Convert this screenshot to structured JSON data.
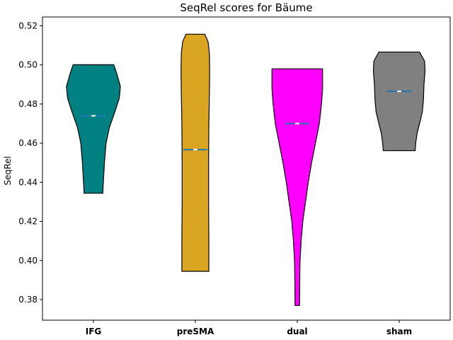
{
  "chart_data": {
    "type": "violin",
    "title": "SeqRel scores for Bäume",
    "xlabel": "",
    "ylabel": "SeqRel",
    "ylim": [
      0.3695,
      0.5245
    ],
    "yticks": [
      0.38,
      0.4,
      0.42,
      0.44,
      0.46,
      0.48,
      0.5,
      0.52
    ],
    "ytick_labels": [
      "0.38",
      "0.40",
      "0.42",
      "0.44",
      "0.46",
      "0.48",
      "0.50",
      "0.52"
    ],
    "grid": false,
    "categories": [
      "IFG",
      "preSMA",
      "dual",
      "sham"
    ],
    "series": [
      {
        "category": "IFG",
        "color": "#008080",
        "min": 0.4344,
        "max": 0.5001,
        "median": 0.474,
        "profile": [
          [
            0.4344,
            0.34
          ],
          [
            0.44,
            0.36
          ],
          [
            0.45,
            0.4
          ],
          [
            0.46,
            0.46
          ],
          [
            0.468,
            0.58
          ],
          [
            0.476,
            0.78
          ],
          [
            0.483,
            0.94
          ],
          [
            0.489,
            0.98
          ],
          [
            0.495,
            0.86
          ],
          [
            0.5001,
            0.74
          ]
        ]
      },
      {
        "category": "preSMA",
        "color": "#DAA520",
        "min": 0.3945,
        "max": 0.5157,
        "median": 0.4567,
        "profile": [
          [
            0.3945,
            0.49
          ],
          [
            0.41,
            0.49
          ],
          [
            0.43,
            0.48
          ],
          [
            0.45,
            0.48
          ],
          [
            0.47,
            0.49
          ],
          [
            0.485,
            0.51
          ],
          [
            0.497,
            0.52
          ],
          [
            0.506,
            0.51
          ],
          [
            0.512,
            0.46
          ],
          [
            0.5157,
            0.34
          ]
        ]
      },
      {
        "category": "dual",
        "color": "#FF00FF",
        "min": 0.377,
        "max": 0.498,
        "median": 0.47,
        "profile": [
          [
            0.377,
            0.08
          ],
          [
            0.39,
            0.09
          ],
          [
            0.4,
            0.1
          ],
          [
            0.41,
            0.14
          ],
          [
            0.42,
            0.2
          ],
          [
            0.43,
            0.3
          ],
          [
            0.44,
            0.4
          ],
          [
            0.45,
            0.52
          ],
          [
            0.46,
            0.66
          ],
          [
            0.47,
            0.8
          ],
          [
            0.48,
            0.88
          ],
          [
            0.488,
            0.92
          ],
          [
            0.498,
            0.92
          ]
        ]
      },
      {
        "category": "sham",
        "color": "#808080",
        "min": 0.4562,
        "max": 0.5066,
        "median": 0.4865,
        "profile": [
          [
            0.4562,
            0.58
          ],
          [
            0.46,
            0.6
          ],
          [
            0.465,
            0.65
          ],
          [
            0.47,
            0.74
          ],
          [
            0.476,
            0.84
          ],
          [
            0.482,
            0.88
          ],
          [
            0.49,
            0.9
          ],
          [
            0.497,
            0.94
          ],
          [
            0.502,
            0.92
          ],
          [
            0.5066,
            0.74
          ]
        ]
      }
    ]
  }
}
